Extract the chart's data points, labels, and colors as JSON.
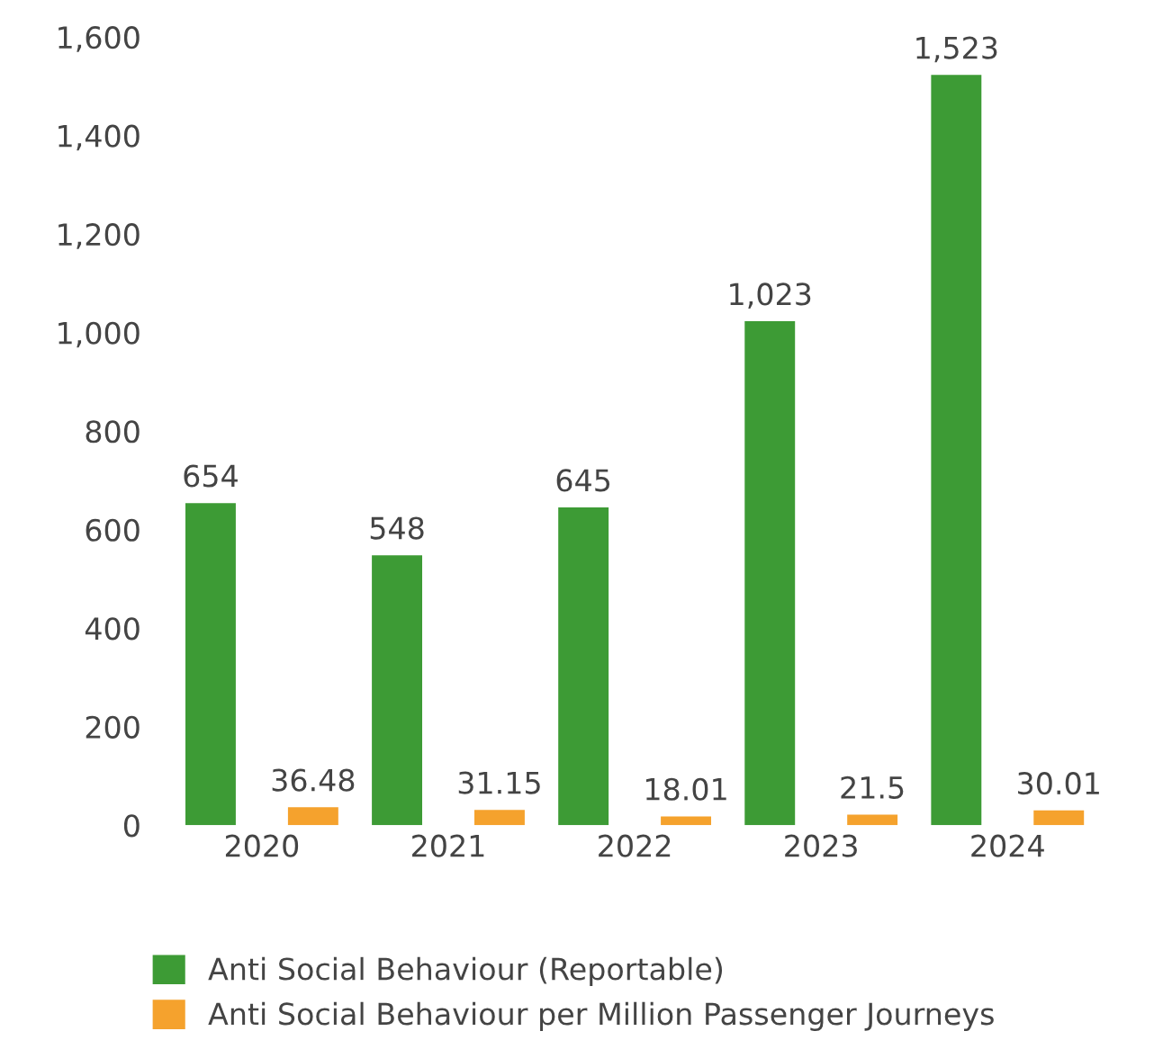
{
  "chart_data": {
    "type": "bar",
    "categories": [
      "2020",
      "2021",
      "2022",
      "2023",
      "2024"
    ],
    "series": [
      {
        "name": "Anti Social Behaviour (Reportable)",
        "color": "#3d9b35",
        "values": [
          654,
          548,
          645,
          1023,
          1523
        ],
        "value_labels": [
          "654",
          "548",
          "645",
          "1,023",
          "1,523"
        ]
      },
      {
        "name": "Anti Social Behaviour per Million Passenger Journeys",
        "color": "#f5a22d",
        "values": [
          36.48,
          31.15,
          18.01,
          21.5,
          30.01
        ],
        "value_labels": [
          "36.48",
          "31.15",
          "18.01",
          "21.5",
          "30.01"
        ]
      }
    ],
    "ylim": [
      0,
      1600
    ],
    "yticks": [
      0,
      200,
      400,
      600,
      800,
      {
        "value": 1000,
        "label": "1,000"
      },
      {
        "value": 1200,
        "label": "1,200"
      },
      {
        "value": 1400,
        "label": "1,400"
      },
      {
        "value": 1600,
        "label": "1,600"
      }
    ],
    "legend": "bottom",
    "grid": false
  }
}
